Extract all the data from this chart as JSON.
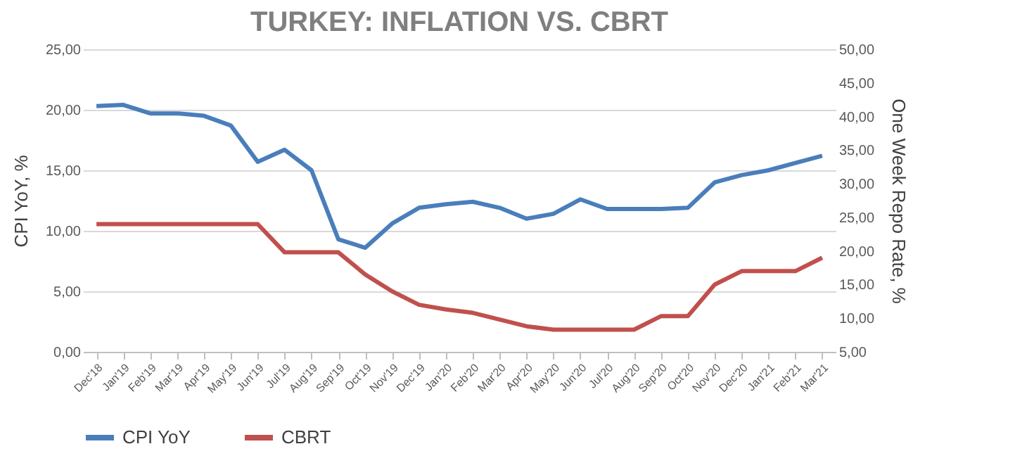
{
  "chart_data": {
    "type": "line",
    "title": "TURKEY: INFLATION VS. CBRT",
    "ylabel": "CPI YoY, %",
    "y2label": "One Week Repo Rate, %",
    "categories": [
      "Dec'18",
      "Jan'19",
      "Feb'19",
      "Mar'19",
      "Apr'19",
      "May'19",
      "Jun'19",
      "Jul'19",
      "Aug'19",
      "Sep'19",
      "Oct'19",
      "Nov'19",
      "Dec'19",
      "Jan'20",
      "Feb'20",
      "Mar'20",
      "Apr'20",
      "May'20",
      "Jun'20",
      "Jul'20",
      "Aug'20",
      "Sep'20",
      "Oct'20",
      "Nov'20",
      "Dec'20",
      "Jan'21",
      "Feb'21",
      "Mar'21"
    ],
    "series": [
      {
        "name": "CPI YoY",
        "color": "#4a7ebb",
        "values": [
          20.3,
          20.4,
          19.7,
          19.7,
          19.5,
          18.7,
          15.7,
          16.7,
          15.0,
          9.3,
          8.6,
          10.6,
          11.9,
          12.2,
          12.4,
          11.9,
          11.0,
          11.4,
          12.6,
          11.8,
          11.8,
          11.8,
          11.9,
          14.0,
          14.6,
          15.0,
          15.6,
          16.2
        ]
      },
      {
        "name": "CBRT",
        "color": "#c0504d",
        "axis": "y2",
        "values": [
          24,
          24,
          24,
          24,
          24,
          24,
          24,
          19.8,
          19.8,
          19.8,
          16.5,
          14,
          12,
          11.3,
          10.8,
          9.8,
          8.8,
          8.3,
          8.3,
          8.3,
          8.3,
          10.3,
          10.3,
          15,
          17,
          17,
          17,
          19
        ]
      }
    ],
    "ylim": [
      0,
      25
    ],
    "yticks": [
      {
        "value": 0,
        "label": "0,00"
      },
      {
        "value": 5,
        "label": "5,00"
      },
      {
        "value": 10,
        "label": "10,00"
      },
      {
        "value": 15,
        "label": "15,00"
      },
      {
        "value": 20,
        "label": "20,00"
      },
      {
        "value": 25,
        "label": "25,00"
      }
    ],
    "y2lim": [
      5,
      50
    ],
    "y2ticks": [
      {
        "value": 5,
        "label": "5,00"
      },
      {
        "value": 10,
        "label": "10,00"
      },
      {
        "value": 15,
        "label": "15,00"
      },
      {
        "value": 20,
        "label": "20,00"
      },
      {
        "value": 25,
        "label": "25,00"
      },
      {
        "value": 30,
        "label": "30,00"
      },
      {
        "value": 35,
        "label": "35,00"
      },
      {
        "value": 40,
        "label": "40,00"
      },
      {
        "value": 45,
        "label": "45,00"
      },
      {
        "value": 50,
        "label": "50,00"
      }
    ],
    "grid": "y",
    "legend": "bottom",
    "marker": "none",
    "line_style": "solid"
  }
}
